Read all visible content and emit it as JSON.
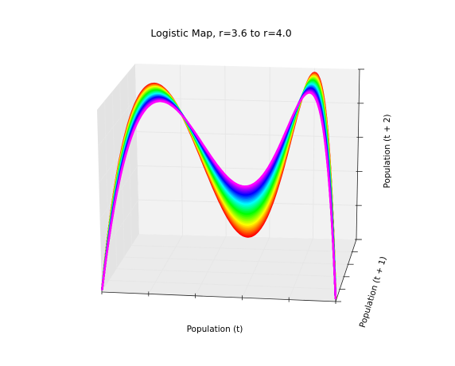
{
  "chart_data": {
    "type": "scatter",
    "projection": "3d",
    "title": "Logistic Map, r=3.6 to r=4.0",
    "xlabel": "Population (t)",
    "ylabel": "Population (t + 1)",
    "zlabel": "Population (t + 2)",
    "xlim": [
      0,
      1
    ],
    "ylim": [
      0,
      1
    ],
    "zlim": [
      0,
      1
    ],
    "r_range": [
      3.6,
      4.0
    ],
    "r_step": 0.01,
    "colormap": "hsv",
    "grid": true,
    "tick_labels_shown": false,
    "series_description": "For each r, points (x, r*x*(1-x), f(f(x))) of the logistic map f(x)=r*x*(1-x), colored by r"
  }
}
